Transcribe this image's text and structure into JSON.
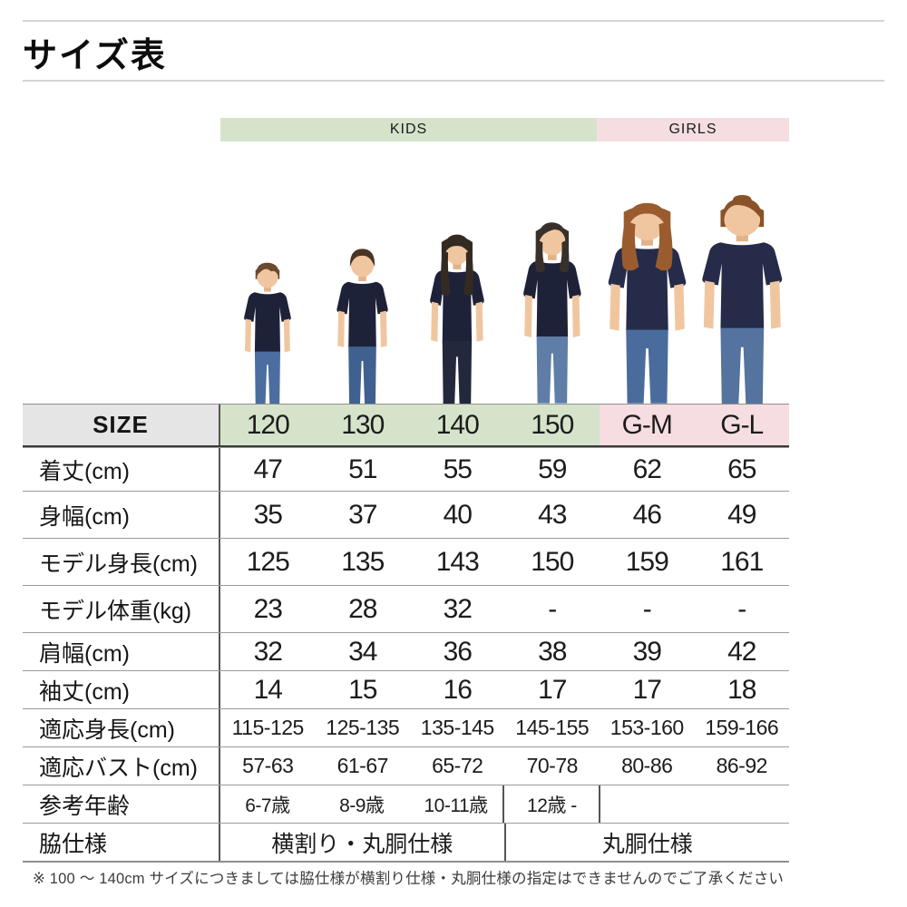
{
  "page": {
    "title": "サイズ表",
    "note": "※ 100 ～ 140cm サイズにつきましては脇仕様が横割り仕様・丸胴仕様の指定はできませんのでご了承ください"
  },
  "groups": {
    "kids": {
      "label": "KIDS",
      "color": "#d5e3cb"
    },
    "girls": {
      "label": "GIRLS",
      "color": "#f6dde1"
    }
  },
  "table": {
    "corner_label": "SIZE",
    "columns": [
      {
        "label": "120",
        "group": "kids"
      },
      {
        "label": "130",
        "group": "kids"
      },
      {
        "label": "140",
        "group": "kids"
      },
      {
        "label": "150",
        "group": "kids"
      },
      {
        "label": "G-M",
        "group": "girls"
      },
      {
        "label": "G-L",
        "group": "girls"
      }
    ],
    "rows": [
      {
        "label": "着丈(cm)",
        "values": [
          "47",
          "51",
          "55",
          "59",
          "62",
          "65"
        ]
      },
      {
        "label": "身幅(cm)",
        "values": [
          "35",
          "37",
          "40",
          "43",
          "46",
          "49"
        ]
      },
      {
        "label": "モデル身長(cm)",
        "values": [
          "125",
          "135",
          "143",
          "150",
          "159",
          "161"
        ]
      },
      {
        "label": "モデル体重(kg)",
        "values": [
          "23",
          "28",
          "32",
          "-",
          "-",
          "-"
        ]
      },
      {
        "label": "肩幅(cm)",
        "values": [
          "32",
          "34",
          "36",
          "38",
          "39",
          "42"
        ]
      },
      {
        "label": "袖丈(cm)",
        "values": [
          "14",
          "15",
          "16",
          "17",
          "17",
          "18"
        ]
      },
      {
        "label": "適応身長(cm)",
        "values": [
          "115-125",
          "125-135",
          "135-145",
          "145-155",
          "153-160",
          "159-166"
        ]
      },
      {
        "label": "適応バスト(cm)",
        "values": [
          "57-63",
          "61-67",
          "65-72",
          "70-78",
          "80-86",
          "86-92"
        ]
      },
      {
        "label": "参考年齢",
        "values": [
          "6-7歳",
          "8-9歳",
          "10-11歳",
          "12歳 -",
          "",
          ""
        ],
        "dividers": [
          3,
          4
        ]
      },
      {
        "label": "脇仕様",
        "merged": [
          {
            "span": 3,
            "value": "横割り・丸胴仕様"
          },
          {
            "span": 3,
            "value": "丸胴仕様"
          }
        ]
      }
    ]
  },
  "models": [
    {
      "size": "120",
      "variant": "boyShaggy",
      "visible_height": 153,
      "hair": "#6a4a2e",
      "shirt": "#1e2238",
      "pants": "#4b6da0",
      "skin": "#f0c6a0"
    },
    {
      "size": "130",
      "variant": "boyCrop",
      "visible_height": 167,
      "hair": "#4a3424",
      "shirt": "#1e2238",
      "pants": "#40618f",
      "skin": "#f0c6a0"
    },
    {
      "size": "140",
      "variant": "girlLong",
      "visible_height": 183,
      "hair": "#332a22",
      "shirt": "#1e2238",
      "pants": "#23283d",
      "skin": "#f0c6a0"
    },
    {
      "size": "150",
      "variant": "girlMed",
      "visible_height": 195,
      "hair": "#38302a",
      "shirt": "#1e2238",
      "pants": "#5e7ea8",
      "skin": "#f0c6a0"
    },
    {
      "size": "G-M",
      "variant": "womanBob",
      "visible_height": 215,
      "hair": "#9a5c2e",
      "shirt": "#262b4a",
      "pants": "#4a6c9d",
      "skin": "#f0c6a0"
    },
    {
      "size": "G-L",
      "variant": "womanUpdo",
      "visible_height": 221,
      "hair": "#8a5228",
      "shirt": "#262b4a",
      "pants": "#54739f",
      "skin": "#f0c6a0"
    }
  ]
}
